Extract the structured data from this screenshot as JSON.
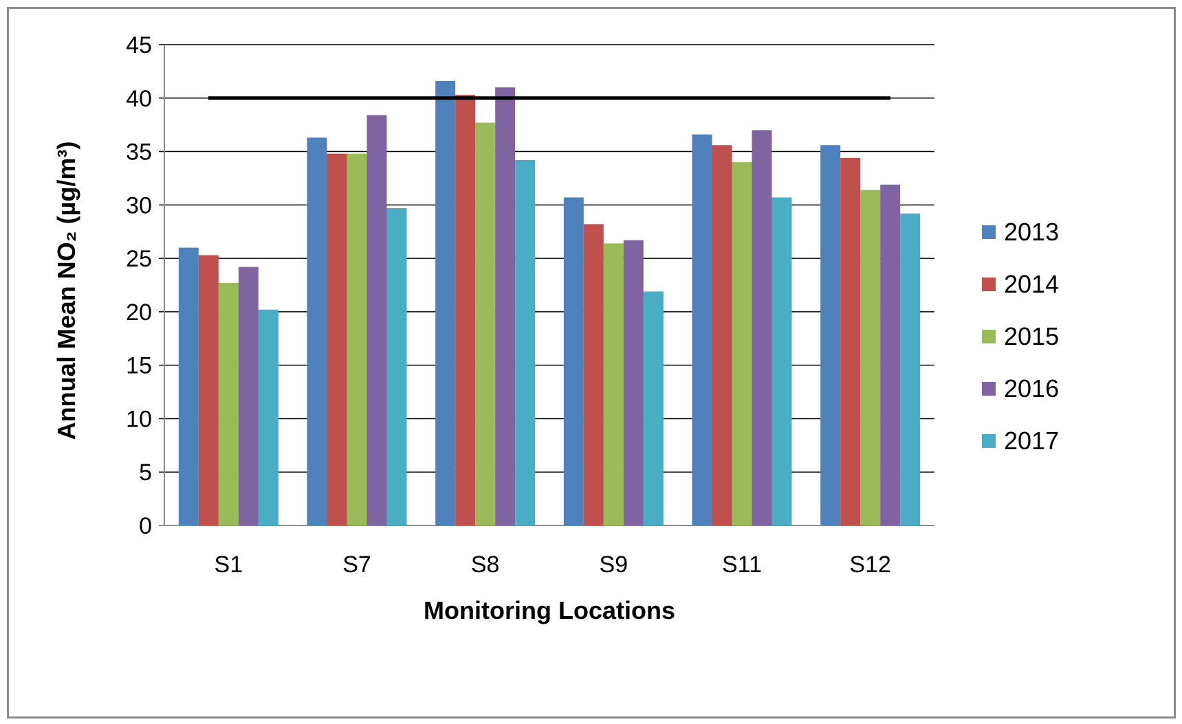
{
  "chart_data": {
    "type": "bar",
    "title": "",
    "xlabel": "Monitoring Locations",
    "ylabel": "Annual Mean NO₂ (µg/m³)",
    "ylim": [
      0,
      45
    ],
    "yticks": [
      0,
      5,
      10,
      15,
      20,
      25,
      30,
      35,
      40,
      45
    ],
    "grid": true,
    "legend_position": "right",
    "categories": [
      "S1",
      "S7",
      "S8",
      "S9",
      "S11",
      "S12"
    ],
    "series": [
      {
        "name": "2013",
        "color": "#4f81bd",
        "values": [
          26.0,
          36.3,
          41.6,
          30.7,
          36.6,
          35.6
        ]
      },
      {
        "name": "2014",
        "color": "#c0504d",
        "values": [
          25.3,
          34.8,
          40.3,
          28.2,
          35.6,
          34.4
        ]
      },
      {
        "name": "2015",
        "color": "#9bbb59",
        "values": [
          22.7,
          34.8,
          37.7,
          26.4,
          34.0,
          31.4
        ]
      },
      {
        "name": "2016",
        "color": "#8064a2",
        "values": [
          24.2,
          38.4,
          41.0,
          26.7,
          37.0,
          31.9
        ]
      },
      {
        "name": "2017",
        "color": "#4bacc6",
        "values": [
          20.2,
          29.7,
          34.2,
          21.9,
          30.7,
          29.2
        ]
      }
    ],
    "reference_line": {
      "value": 40,
      "color": "#000000"
    }
  }
}
